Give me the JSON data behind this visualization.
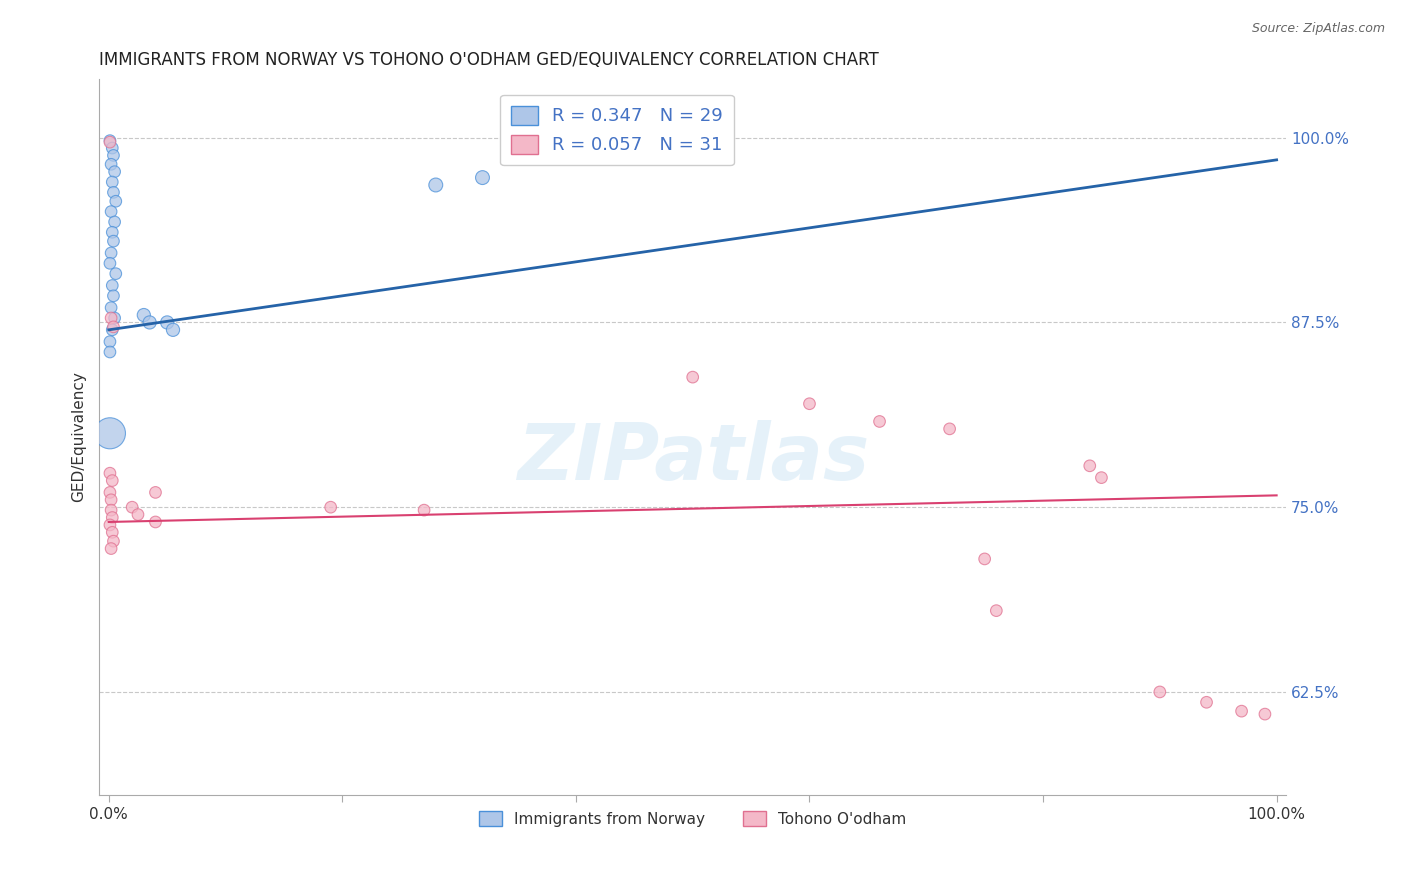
{
  "title": "IMMIGRANTS FROM NORWAY VS TOHONO O'ODHAM GED/EQUIVALENCY CORRELATION CHART",
  "source": "Source: ZipAtlas.com",
  "ylabel": "GED/Equivalency",
  "yticks": [
    0.625,
    0.75,
    0.875,
    1.0
  ],
  "ytick_labels": [
    "62.5%",
    "75.0%",
    "87.5%",
    "100.0%"
  ],
  "xlim": [
    -0.008,
    1.008
  ],
  "ylim": [
    0.555,
    1.04
  ],
  "legend_r1": "R = 0.347   N = 29",
  "legend_r2": "R = 0.057   N = 31",
  "legend_label1": "Immigrants from Norway",
  "legend_label2": "Tohono O'odham",
  "blue_color": "#aec6e8",
  "pink_color": "#f4b8c8",
  "blue_edge_color": "#4a90d9",
  "pink_edge_color": "#e07090",
  "blue_line_color": "#2563a8",
  "pink_line_color": "#d94070",
  "blue_dots": [
    [
      0.001,
      0.998
    ],
    [
      0.003,
      0.993
    ],
    [
      0.004,
      0.988
    ],
    [
      0.002,
      0.982
    ],
    [
      0.005,
      0.977
    ],
    [
      0.003,
      0.97
    ],
    [
      0.004,
      0.963
    ],
    [
      0.006,
      0.957
    ],
    [
      0.002,
      0.95
    ],
    [
      0.005,
      0.943
    ],
    [
      0.003,
      0.936
    ],
    [
      0.004,
      0.93
    ],
    [
      0.002,
      0.922
    ],
    [
      0.001,
      0.915
    ],
    [
      0.006,
      0.908
    ],
    [
      0.003,
      0.9
    ],
    [
      0.004,
      0.893
    ],
    [
      0.002,
      0.885
    ],
    [
      0.005,
      0.878
    ],
    [
      0.003,
      0.87
    ],
    [
      0.03,
      0.88
    ],
    [
      0.05,
      0.875
    ],
    [
      0.035,
      0.875
    ],
    [
      0.055,
      0.87
    ],
    [
      0.28,
      0.968
    ],
    [
      0.32,
      0.973
    ],
    [
      0.001,
      0.862
    ],
    [
      0.001,
      0.855
    ],
    [
      0.001,
      0.8
    ]
  ],
  "blue_sizes": [
    70,
    70,
    70,
    70,
    70,
    70,
    70,
    70,
    70,
    70,
    70,
    70,
    70,
    70,
    70,
    70,
    70,
    70,
    70,
    70,
    90,
    90,
    90,
    90,
    100,
    100,
    70,
    70,
    500
  ],
  "pink_dots": [
    [
      0.001,
      0.997
    ],
    [
      0.002,
      0.878
    ],
    [
      0.004,
      0.872
    ],
    [
      0.001,
      0.773
    ],
    [
      0.003,
      0.768
    ],
    [
      0.001,
      0.76
    ],
    [
      0.002,
      0.755
    ],
    [
      0.002,
      0.748
    ],
    [
      0.003,
      0.743
    ],
    [
      0.001,
      0.738
    ],
    [
      0.003,
      0.733
    ],
    [
      0.004,
      0.727
    ],
    [
      0.002,
      0.722
    ],
    [
      0.02,
      0.75
    ],
    [
      0.04,
      0.76
    ],
    [
      0.025,
      0.745
    ],
    [
      0.04,
      0.74
    ],
    [
      0.19,
      0.75
    ],
    [
      0.27,
      0.748
    ],
    [
      0.5,
      0.838
    ],
    [
      0.6,
      0.82
    ],
    [
      0.66,
      0.808
    ],
    [
      0.72,
      0.803
    ],
    [
      0.75,
      0.715
    ],
    [
      0.76,
      0.68
    ],
    [
      0.84,
      0.778
    ],
    [
      0.85,
      0.77
    ],
    [
      0.9,
      0.625
    ],
    [
      0.94,
      0.618
    ],
    [
      0.97,
      0.612
    ],
    [
      0.99,
      0.61
    ]
  ],
  "pink_sizes": [
    70,
    70,
    70,
    70,
    70,
    70,
    70,
    70,
    70,
    70,
    70,
    70,
    70,
    70,
    70,
    70,
    70,
    70,
    70,
    70,
    70,
    70,
    70,
    70,
    70,
    70,
    70,
    70,
    70,
    70,
    70
  ],
  "blue_trendline_x": [
    0.0,
    1.0
  ],
  "blue_trendline_y": [
    0.87,
    0.985
  ],
  "pink_trendline_x": [
    0.0,
    1.0
  ],
  "pink_trendline_y": [
    0.74,
    0.758
  ],
  "xtick_positions": [
    0.0,
    0.2,
    0.4,
    0.6,
    0.8,
    1.0
  ],
  "xtick_labels": [
    "0.0%",
    "",
    "",
    "",
    "",
    "100.0%"
  ],
  "watermark": "ZIPatlas",
  "grid_color": "#c8c8c8",
  "grid_style": "--",
  "background_color": "#ffffff",
  "spine_color": "#aaaaaa",
  "title_fontsize": 12,
  "tick_fontsize": 11,
  "right_tick_color": "#4472c4",
  "legend_fontsize": 13,
  "legend_color": "#4472c4"
}
